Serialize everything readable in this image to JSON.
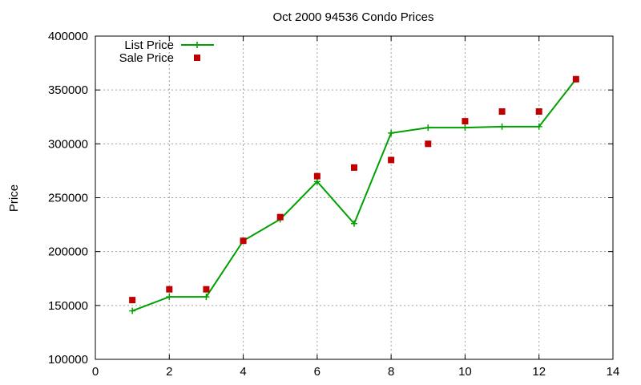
{
  "chart_data": {
    "type": "line",
    "title": "Oct 2000 94536 Condo Prices",
    "xlabel": "",
    "ylabel": "Price",
    "xlim": [
      0,
      14
    ],
    "ylim": [
      100000,
      400000
    ],
    "x_ticks": [
      0,
      2,
      4,
      6,
      8,
      10,
      12,
      14
    ],
    "y_ticks": [
      100000,
      150000,
      200000,
      250000,
      300000,
      350000,
      400000
    ],
    "grid": true,
    "legend_position": "top-left",
    "series": [
      {
        "name": "List Price",
        "style": "linespoints",
        "marker": "plus",
        "color": "#00a000",
        "points": [
          {
            "x": 1,
            "y": 145000
          },
          {
            "x": 2,
            "y": 158000
          },
          {
            "x": 3,
            "y": 158000
          },
          {
            "x": 4,
            "y": 210000
          },
          {
            "x": 5,
            "y": 230000
          },
          {
            "x": 6,
            "y": 265000
          },
          {
            "x": 7,
            "y": 226000
          },
          {
            "x": 8,
            "y": 310000
          },
          {
            "x": 9,
            "y": 315000
          },
          {
            "x": 10,
            "y": 315000
          },
          {
            "x": 11,
            "y": 316000
          },
          {
            "x": 12,
            "y": 316000
          },
          {
            "x": 13,
            "y": 360000
          }
        ]
      },
      {
        "name": "Sale Price",
        "style": "points",
        "marker": "square",
        "color": "#c00000",
        "points": [
          {
            "x": 1,
            "y": 155000
          },
          {
            "x": 2,
            "y": 165000
          },
          {
            "x": 3,
            "y": 165000
          },
          {
            "x": 4,
            "y": 210000
          },
          {
            "x": 5,
            "y": 232000
          },
          {
            "x": 6,
            "y": 270000
          },
          {
            "x": 7,
            "y": 278000
          },
          {
            "x": 8,
            "y": 285000
          },
          {
            "x": 9,
            "y": 300000
          },
          {
            "x": 10,
            "y": 321000
          },
          {
            "x": 11,
            "y": 330000
          },
          {
            "x": 12,
            "y": 330000
          },
          {
            "x": 13,
            "y": 360000
          }
        ]
      }
    ]
  }
}
